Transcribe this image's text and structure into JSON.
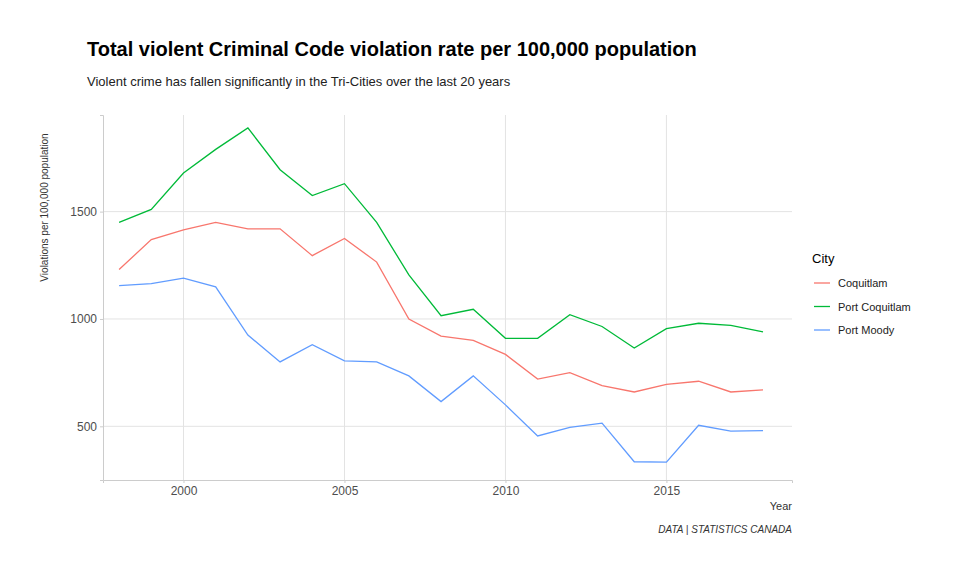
{
  "chart_data": {
    "type": "line",
    "title": "Total violent Criminal Code violation rate per 100,000 population",
    "subtitle": "Violent crime has fallen significantly in the Tri-Cities over the last 20 years",
    "x_label": "Year",
    "y_label": "Violations per 100,000 population",
    "caption": "DATA | STATISTICS CANADA",
    "legend_title": "City",
    "x": [
      1998,
      1999,
      2000,
      2001,
      2002,
      2003,
      2004,
      2005,
      2006,
      2007,
      2008,
      2009,
      2010,
      2011,
      2012,
      2013,
      2014,
      2015,
      2016,
      2017,
      2018
    ],
    "series": [
      {
        "name": "Coquitlam",
        "color": "#F8766D",
        "values": [
          1230,
          1370,
          1415,
          1450,
          1420,
          1420,
          1295,
          1375,
          1265,
          1000,
          920,
          900,
          835,
          720,
          750,
          690,
          660,
          695,
          710,
          660,
          670
        ]
      },
      {
        "name": "Port Coquitlam",
        "color": "#00BA38",
        "values": [
          1450,
          1510,
          1680,
          1790,
          1890,
          1695,
          1575,
          1630,
          1450,
          1205,
          1015,
          1045,
          910,
          910,
          1020,
          965,
          865,
          955,
          980,
          970,
          940
        ]
      },
      {
        "name": "Port Moody",
        "color": "#619CFF",
        "values": [
          1155,
          1165,
          1190,
          1150,
          925,
          800,
          880,
          805,
          800,
          735,
          615,
          735,
          600,
          455,
          495,
          515,
          335,
          333,
          505,
          478,
          480
        ]
      }
    ],
    "xlim": [
      1997.5,
      2018.9
    ],
    "xticks": [
      2000,
      2005,
      2010,
      2015
    ],
    "ylim": [
      250,
      1950
    ],
    "yticks": [
      500,
      1000,
      1500
    ],
    "grid": true,
    "legend": "right"
  }
}
